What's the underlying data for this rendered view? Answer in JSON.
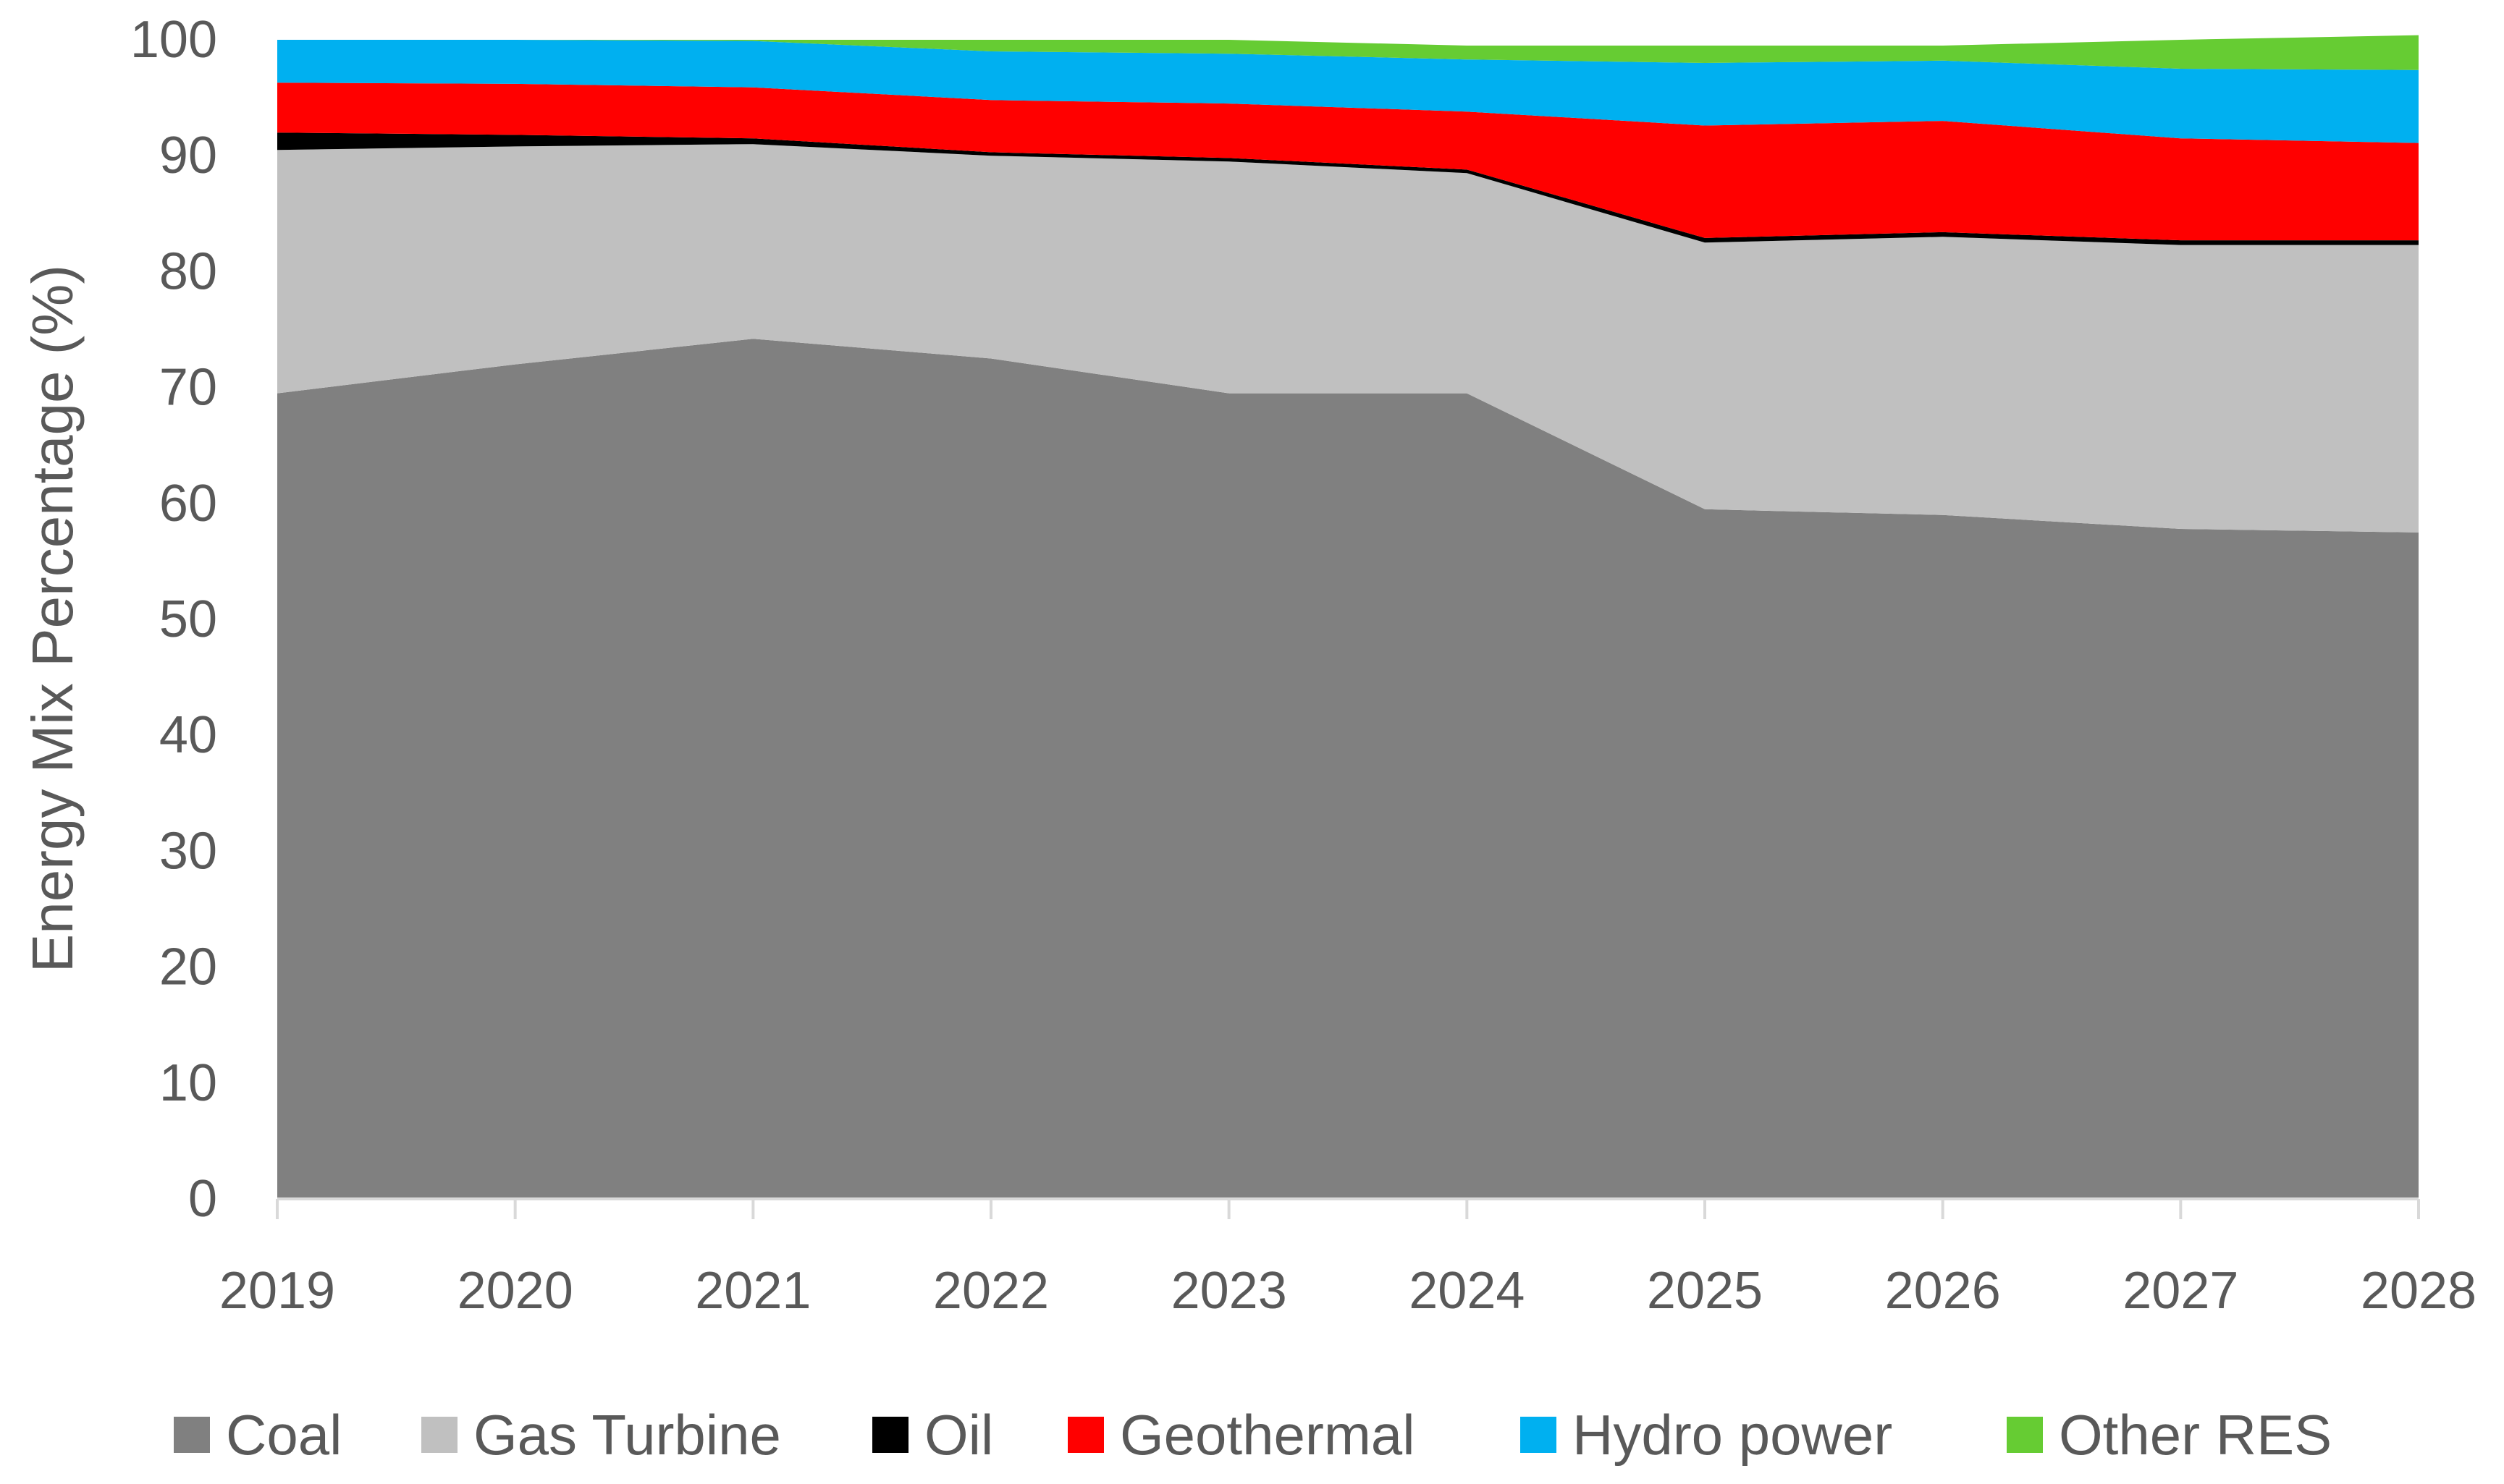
{
  "chart_data": {
    "type": "area",
    "stacked": true,
    "title": "",
    "xlabel": "",
    "ylabel": "Energy Mix Percentage (%)",
    "ylim": [
      0,
      100
    ],
    "yticks": [
      0,
      10,
      20,
      30,
      40,
      50,
      60,
      70,
      80,
      90,
      100
    ],
    "ytick_labels": [
      "0",
      "10",
      "20",
      "30",
      "40",
      "50",
      "60",
      "70",
      "80",
      "90",
      "100"
    ],
    "categories": [
      "2019",
      "2020",
      "2021",
      "2022",
      "2023",
      "2024",
      "2025",
      "2026",
      "2027",
      "2028"
    ],
    "grid": false,
    "legend_position": "bottom",
    "series": [
      {
        "name": "Coal",
        "color": "#808080",
        "values": [
          69.5,
          72.0,
          74.2,
          72.5,
          69.5,
          69.5,
          59.5,
          59.0,
          57.8,
          57.5
        ]
      },
      {
        "name": "Gas Turbine",
        "color": "#c0c0c0",
        "values": [
          21.0,
          18.8,
          16.8,
          17.5,
          20.0,
          19.0,
          23.0,
          24.0,
          24.5,
          24.8
        ]
      },
      {
        "name": "Oil",
        "color": "#000000",
        "values": [
          1.5,
          1.0,
          0.5,
          0.3,
          0.3,
          0.3,
          0.4,
          0.4,
          0.4,
          0.4
        ]
      },
      {
        "name": "Geothermal",
        "color": "#ff0000",
        "values": [
          4.3,
          4.4,
          4.4,
          4.5,
          4.7,
          5.0,
          9.7,
          9.6,
          8.8,
          8.4
        ]
      },
      {
        "name": "Hydro power",
        "color": "#00b0f0",
        "values": [
          3.7,
          3.8,
          4.0,
          4.2,
          4.3,
          4.5,
          5.4,
          5.2,
          6.0,
          6.3
        ]
      },
      {
        "name": "Other RES",
        "color": "#66cc33",
        "values": [
          0.0,
          0.0,
          0.1,
          1.0,
          1.2,
          1.2,
          1.5,
          1.3,
          2.5,
          3.0
        ]
      }
    ]
  }
}
